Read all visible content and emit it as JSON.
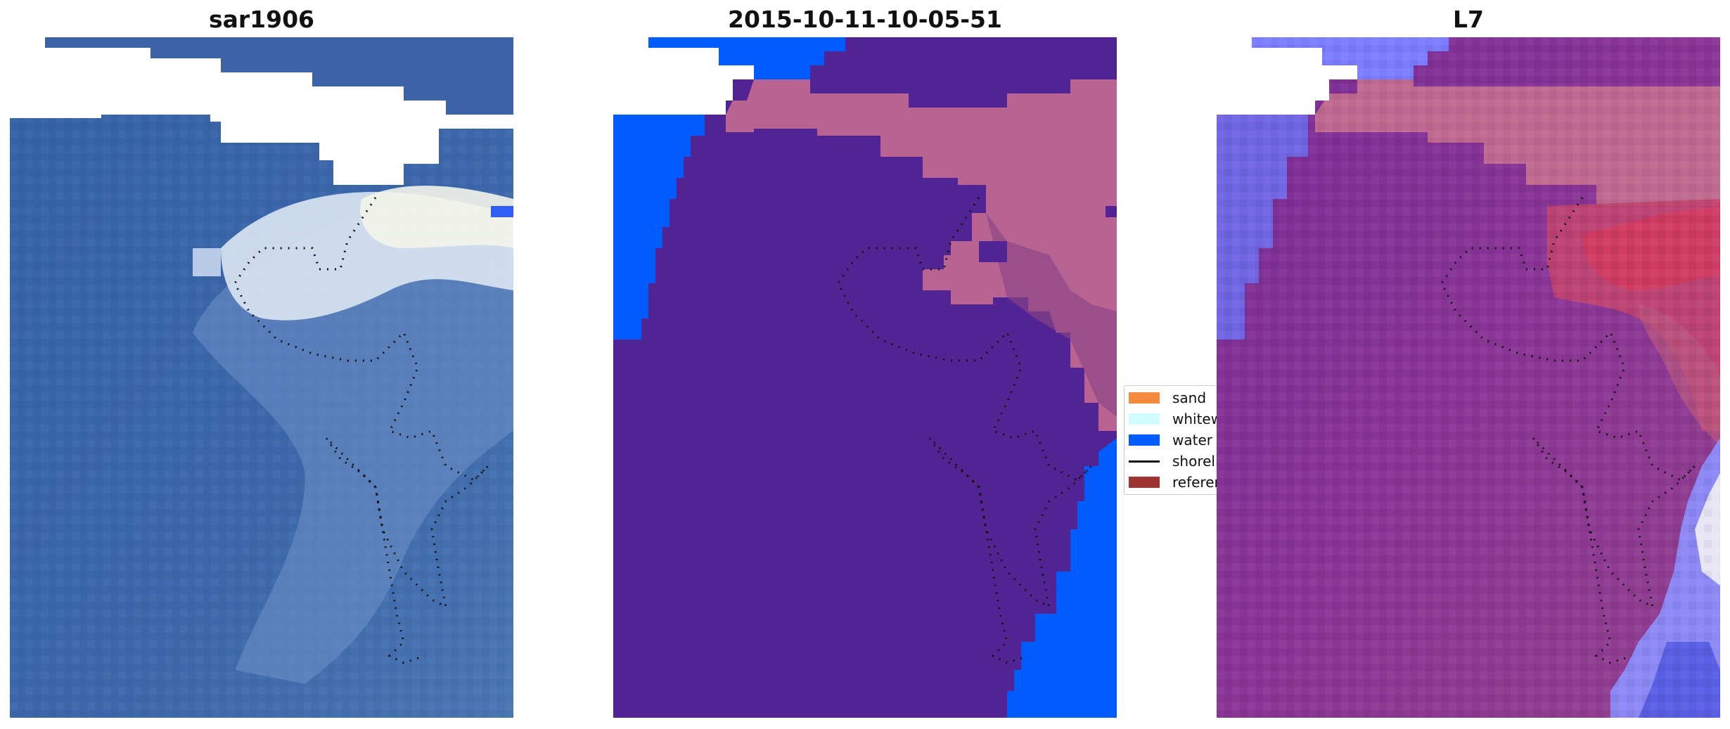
{
  "panels": [
    {
      "title": "sar1906"
    },
    {
      "title": "2015-10-11-10-05-51"
    },
    {
      "title": "L7"
    }
  ],
  "legend": {
    "items": [
      {
        "label": "sand",
        "color": "#f58a3c"
      },
      {
        "label": "whitewater",
        "color": "#cffcfc"
      },
      {
        "label": "water",
        "color": "#005cff"
      },
      {
        "label": "shoreline",
        "color": "#000000"
      },
      {
        "label": "reference",
        "color": "#9c3434"
      }
    ]
  },
  "colors": {
    "rgb_water": "#3a64a8",
    "rgb_cloud": "#dfe8f2",
    "class_other": "#522493",
    "class_water": "#005cff",
    "class_land": "#b96393",
    "overlay_purple": "#7d2d97",
    "overlay_pink": "#c4557a",
    "overlay_blue": "#7a7cff"
  }
}
